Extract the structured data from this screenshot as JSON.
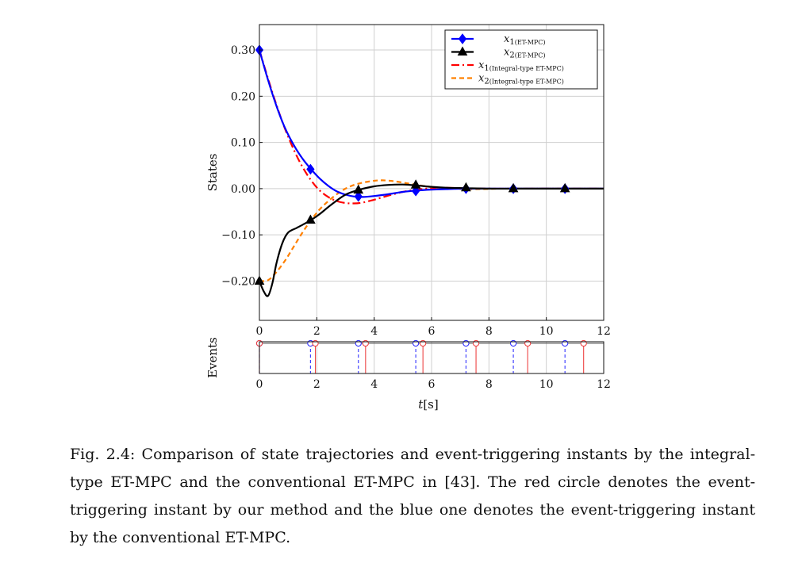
{
  "chart_data": [
    {
      "type": "line",
      "ylabel": "States",
      "xlim": [
        0,
        12
      ],
      "ylim": [
        -0.285,
        0.355
      ],
      "xticks": [
        0,
        2,
        4,
        6,
        8,
        10,
        12
      ],
      "xtick_labels": [
        "0",
        "2",
        "4",
        "6",
        "8",
        "10",
        "12"
      ],
      "yticks": [
        0.3,
        0.2,
        0.1,
        0.0,
        -0.1,
        -0.2
      ],
      "ytick_labels": [
        "0.30",
        "0.20",
        "0.10",
        "0.00",
        "−0.10",
        "−0.20"
      ],
      "grid": true,
      "legend_position": "top-right",
      "series": [
        {
          "name": "x1 (ET-MPC)",
          "legend_main": "x",
          "legend_sub": "1",
          "legend_note": "(ET-MPC)",
          "color": "#0000ff",
          "dash": "none",
          "marker": "diamond",
          "x": [
            0,
            0.3,
            0.6,
            0.9,
            1.2,
            1.5,
            1.8,
            2.1,
            2.4,
            2.7,
            3.0,
            3.3,
            3.6,
            4.0,
            4.5,
            5.0,
            5.5,
            6.0,
            6.5,
            7.2,
            8.0,
            8.9,
            10.0,
            10.7,
            12.0
          ],
          "y": [
            0.3,
            0.235,
            0.178,
            0.13,
            0.094,
            0.065,
            0.042,
            0.022,
            0.006,
            -0.006,
            -0.013,
            -0.017,
            -0.018,
            -0.016,
            -0.012,
            -0.007,
            -0.004,
            -0.002,
            -0.001,
            0.0,
            0.0,
            0.0,
            0.0,
            0.0,
            0.0
          ],
          "marker_x": [
            0,
            1.78,
            3.45,
            5.45,
            7.2,
            8.85,
            10.65
          ],
          "marker_y": [
            0.3,
            0.042,
            -0.017,
            -0.005,
            0.0,
            0.0,
            0.0
          ]
        },
        {
          "name": "x2 (ET-MPC)",
          "legend_main": "x",
          "legend_sub": "2",
          "legend_note": "(ET-MPC)",
          "color": "#000000",
          "dash": "none",
          "marker": "triangle",
          "x": [
            0,
            0.15,
            0.3,
            0.45,
            0.6,
            0.8,
            1.0,
            1.3,
            1.6,
            1.8,
            2.1,
            2.5,
            3.0,
            3.5,
            4.0,
            4.5,
            5.0,
            5.45,
            6.0,
            6.5,
            7.2,
            8.0,
            8.85,
            10.0,
            10.65,
            12.0
          ],
          "y": [
            -0.2,
            -0.222,
            -0.232,
            -0.205,
            -0.16,
            -0.118,
            -0.095,
            -0.085,
            -0.075,
            -0.068,
            -0.055,
            -0.035,
            -0.013,
            -0.002,
            0.005,
            0.008,
            0.009,
            0.007,
            0.004,
            0.002,
            0.001,
            0.0,
            0.0,
            0.0,
            0.0,
            0.0
          ],
          "marker_x": [
            0,
            1.78,
            3.45,
            5.45,
            7.2,
            8.85,
            10.65
          ],
          "marker_y": [
            -0.2,
            -0.068,
            -0.003,
            0.008,
            0.002,
            0.0,
            0.0
          ]
        },
        {
          "name": "x1 (Integral-type ET-MPC)",
          "legend_main": "x",
          "legend_sub": "1",
          "legend_note": "(Integral-type ET-MPC)",
          "color": "#ff0000",
          "dash": "10,4,2,4",
          "marker": "none",
          "x": [
            0,
            0.3,
            0.6,
            0.9,
            1.2,
            1.5,
            1.8,
            2.1,
            2.4,
            2.7,
            3.0,
            3.3,
            3.6,
            4.0,
            4.5,
            5.0,
            5.5,
            6.0,
            6.5,
            7.0,
            8.0,
            10.0,
            12.0
          ],
          "y": [
            0.3,
            0.238,
            0.18,
            0.128,
            0.084,
            0.047,
            0.018,
            -0.004,
            -0.018,
            -0.027,
            -0.031,
            -0.032,
            -0.03,
            -0.024,
            -0.015,
            -0.007,
            -0.002,
            0.001,
            0.002,
            0.001,
            0.0,
            0.0,
            0.0
          ]
        },
        {
          "name": "x2 (Integral-type ET-MPC)",
          "legend_main": "x",
          "legend_sub": "2",
          "legend_note": "(Integral-type ET-MPC)",
          "color": "#ff8000",
          "dash": "6,4",
          "marker": "none",
          "x": [
            0,
            0.3,
            0.6,
            0.9,
            1.2,
            1.5,
            1.8,
            2.1,
            2.4,
            2.7,
            3.0,
            3.3,
            3.6,
            4.0,
            4.3,
            4.7,
            5.2,
            5.7,
            6.2,
            6.8,
            7.5,
            8.5,
            10.0,
            12.0
          ],
          "y": [
            -0.2,
            -0.198,
            -0.18,
            -0.155,
            -0.125,
            -0.095,
            -0.068,
            -0.045,
            -0.027,
            -0.012,
            0.0,
            0.008,
            0.013,
            0.017,
            0.018,
            0.016,
            0.011,
            0.006,
            0.002,
            0.0,
            -0.001,
            0.0,
            0.0,
            0.0
          ]
        }
      ]
    },
    {
      "type": "stem",
      "ylabel": "Events",
      "xlabel_main": "t",
      "xlabel_unit": "[s]",
      "xlim": [
        0,
        12
      ],
      "xticks": [
        0,
        2,
        4,
        6,
        8,
        10,
        12
      ],
      "xtick_labels": [
        "0",
        "2",
        "4",
        "6",
        "8",
        "10",
        "12"
      ],
      "series": [
        {
          "name": "ET-MPC",
          "color": "#3333ff",
          "dash": "4,3",
          "x": [
            0,
            1.78,
            3.45,
            5.45,
            7.2,
            8.85,
            10.65
          ]
        },
        {
          "name": "Integral-type ET-MPC",
          "color": "#ee4444",
          "dash": "none",
          "x": [
            0,
            1.95,
            3.7,
            5.7,
            7.55,
            9.35,
            11.3
          ]
        }
      ]
    }
  ],
  "caption": "Fig. 2.4:  Comparison of state trajectories and event-triggering instants by the integral-type ET-MPC and the conventional ET-MPC in [43].  The red circle denotes the event-triggering instant by our method and the blue one denotes the event-triggering instant by the conventional ET-MPC."
}
